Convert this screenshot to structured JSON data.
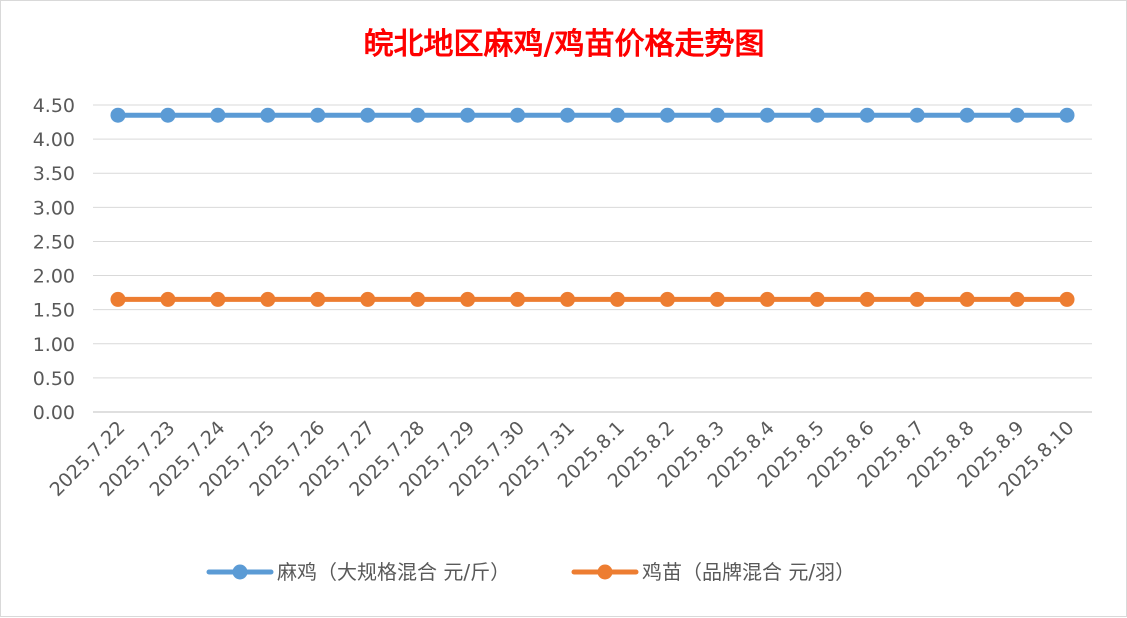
{
  "chart_data": {
    "type": "line",
    "title": "皖北地区麻鸡/鸡苗价格走势图",
    "xlabel": "",
    "ylabel": "",
    "categories": [
      "2025.7.22",
      "2025.7.23",
      "2025.7.24",
      "2025.7.25",
      "2025.7.26",
      "2025.7.27",
      "2025.7.28",
      "2025.7.29",
      "2025.7.30",
      "2025.7.31",
      "2025.8.1",
      "2025.8.2",
      "2025.8.3",
      "2025.8.4",
      "2025.8.5",
      "2025.8.6",
      "2025.8.7",
      "2025.8.8",
      "2025.8.9",
      "2025.8.10"
    ],
    "ylim": [
      0,
      4.5
    ],
    "yticks": [
      "0.00",
      "0.50",
      "1.00",
      "1.50",
      "2.00",
      "2.50",
      "3.00",
      "3.50",
      "4.00",
      "4.50"
    ],
    "grid": "horizontal",
    "legend_position": "bottom",
    "series": [
      {
        "name": "麻鸡（大规格混合 元/斤）",
        "color": "#5b9bd5",
        "values": [
          4.35,
          4.35,
          4.35,
          4.35,
          4.35,
          4.35,
          4.35,
          4.35,
          4.35,
          4.35,
          4.35,
          4.35,
          4.35,
          4.35,
          4.35,
          4.35,
          4.35,
          4.35,
          4.35,
          4.35
        ]
      },
      {
        "name": "鸡苗（品牌混合 元/羽）",
        "color": "#ed7d31",
        "values": [
          1.65,
          1.65,
          1.65,
          1.65,
          1.65,
          1.65,
          1.65,
          1.65,
          1.65,
          1.65,
          1.65,
          1.65,
          1.65,
          1.65,
          1.65,
          1.65,
          1.65,
          1.65,
          1.65,
          1.65
        ]
      }
    ]
  }
}
